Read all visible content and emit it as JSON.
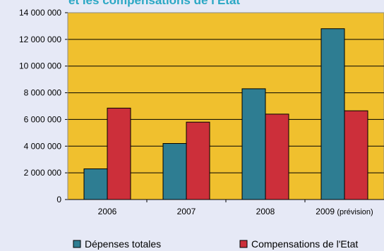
{
  "chart_data": {
    "type": "bar",
    "title": "et les compensations de l'Etat",
    "categories": [
      "2006",
      "2007",
      "2008",
      "2009 (prévision)"
    ],
    "series": [
      {
        "name": "Dépenses totales",
        "values": [
          2300000,
          4200000,
          8300000,
          12800000
        ],
        "color": "#2e7d92"
      },
      {
        "name": "Compensations de l'Etat",
        "values": [
          6850000,
          5800000,
          6400000,
          6650000
        ],
        "color": "#cc2f3a"
      }
    ],
    "ylim": [
      0,
      14000000
    ],
    "yticks": [
      "0",
      "2 000 000",
      "4 000 000",
      "6 000 000",
      "8 000 000",
      "10 000 000",
      "12 000 000",
      "14 000 000"
    ],
    "xlabel": "",
    "ylabel": "",
    "grid": true,
    "legend_position": "bottom",
    "plot_background": "#f0c02e",
    "title_color": "#2aa7c4"
  }
}
